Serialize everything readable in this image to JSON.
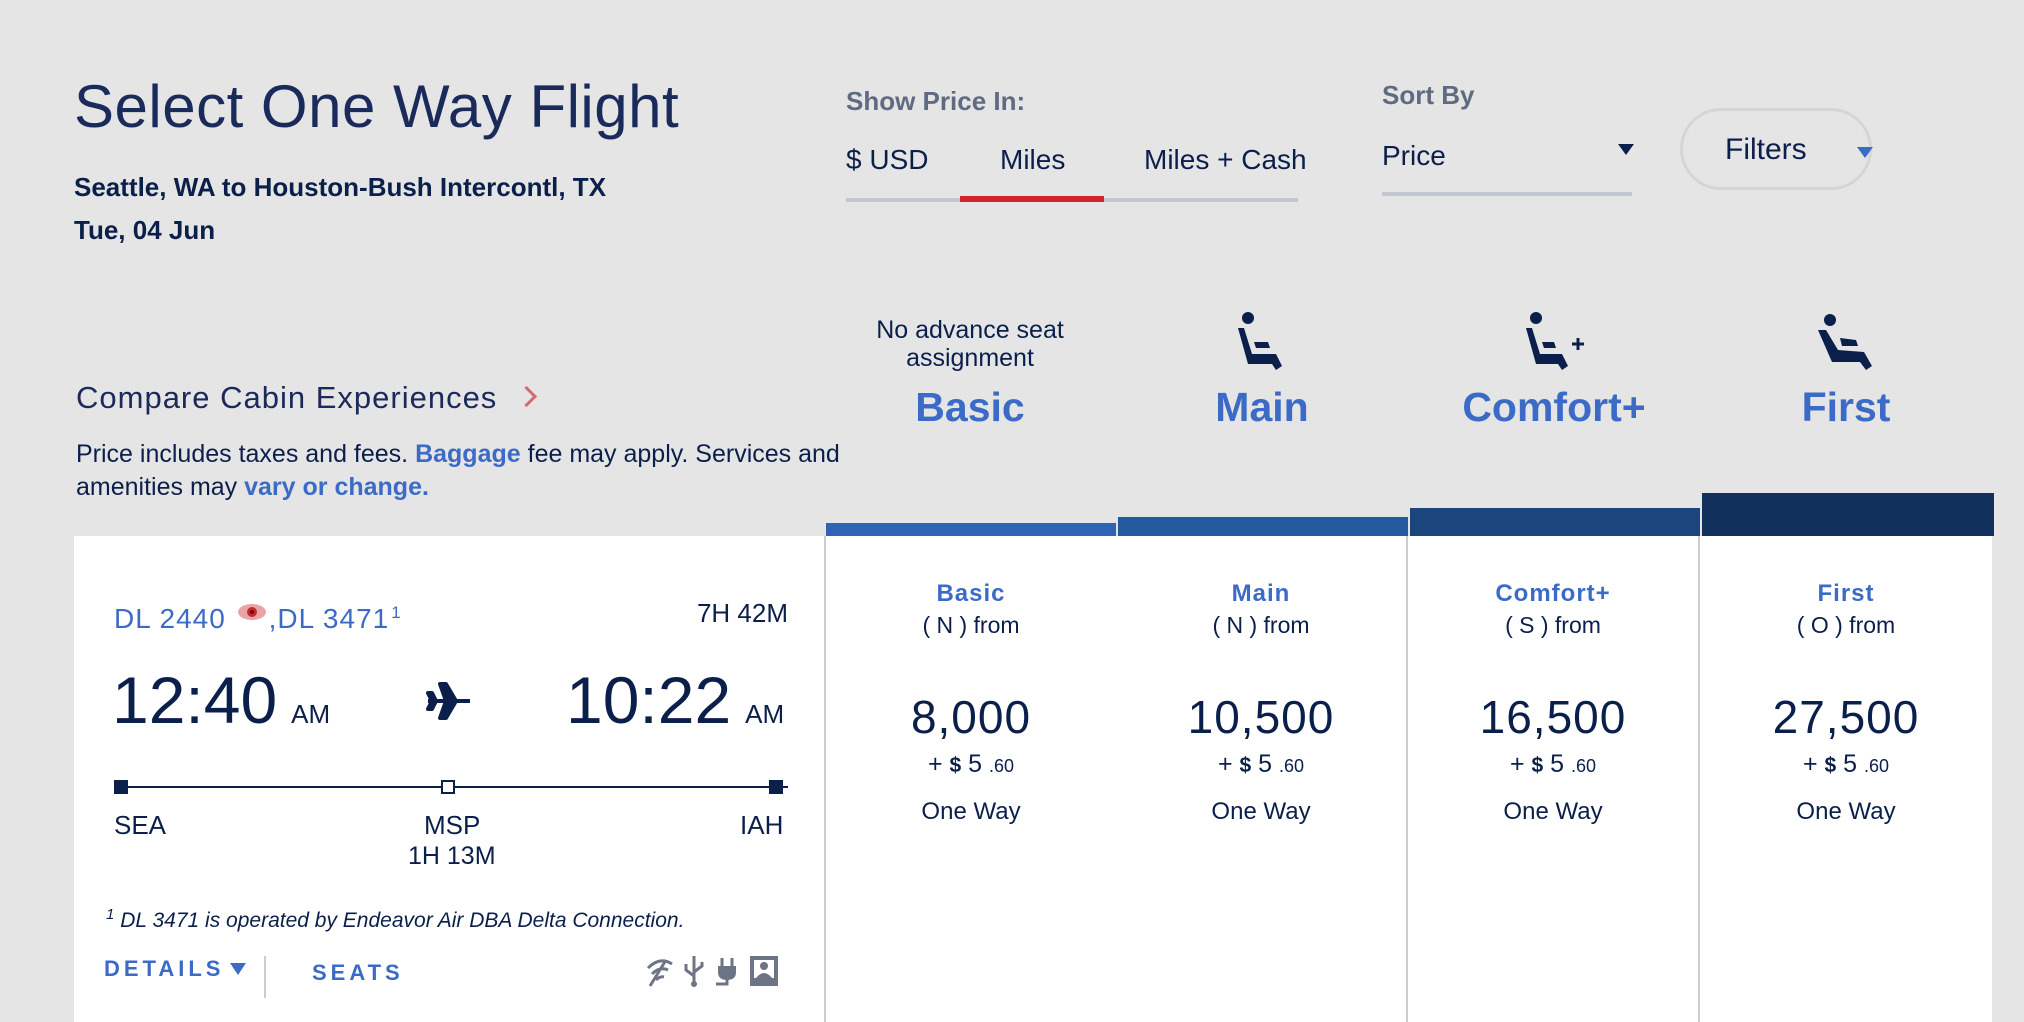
{
  "header": {
    "title": "Select One Way Flight",
    "route": "Seattle, WA to Houston-Bush Intercontl, TX",
    "date": "Tue, 04 Jun"
  },
  "price_display": {
    "label": "Show Price In:",
    "tabs": [
      "$ USD",
      "Miles",
      "Miles + Cash"
    ],
    "selected": "Miles",
    "accent_color": "#d3232f"
  },
  "sort": {
    "label": "Sort By",
    "value": "Price"
  },
  "filters": {
    "label": "Filters"
  },
  "compare": {
    "label": "Compare Cabin Experiences"
  },
  "note": {
    "part1": "Price includes taxes and fees. ",
    "baggage_link": "Baggage",
    "part2": " fee may apply.  Services and amenities may ",
    "vary_link": "vary or change."
  },
  "cabins": [
    {
      "name": "Basic",
      "note": "No advance seat assignment",
      "icon": "none",
      "bar_color": "#2f63b3"
    },
    {
      "name": "Main",
      "note": "",
      "icon": "seat-icon",
      "bar_color": "#24589f"
    },
    {
      "name": "Comfort+",
      "note": "",
      "icon": "seat-plus-icon",
      "bar_color": "#1b457d"
    },
    {
      "name": "First",
      "note": "",
      "icon": "seat-recline-icon",
      "bar_color": "#12305c"
    }
  ],
  "flight": {
    "flight_1": "DL 2440",
    "flight_2": ",DL 3471",
    "footnote_mark": "1",
    "duration": "7H 42M",
    "depart_time": "12:40",
    "depart_ampm": "AM",
    "arrive_time": "10:22",
    "arrive_ampm": "AM",
    "origin": "SEA",
    "stop": "MSP",
    "layover": "1H 13M",
    "destination": "IAH",
    "operated_by": "DL 3471 is operated by Endeavor Air DBA Delta Connection.",
    "details_label": "DETAILS",
    "seats_label": "SEATS",
    "amenities": [
      "wifi-icon",
      "usb-icon",
      "power-icon",
      "entertainment-icon"
    ]
  },
  "fares": [
    {
      "name": "Basic",
      "code": "( N ) from",
      "miles": "8,000",
      "plus": "+",
      "currency": "$",
      "dollars": "5",
      "cents": ".60",
      "trip": "One Way"
    },
    {
      "name": "Main",
      "code": "( N ) from",
      "miles": "10,500",
      "plus": "+",
      "currency": "$",
      "dollars": "5",
      "cents": ".60",
      "trip": "One Way"
    },
    {
      "name": "Comfort+",
      "code": "( S ) from",
      "miles": "16,500",
      "plus": "+",
      "currency": "$",
      "dollars": "5",
      "cents": ".60",
      "trip": "One Way"
    },
    {
      "name": "First",
      "code": "( O ) from",
      "miles": "27,500",
      "plus": "+",
      "currency": "$",
      "dollars": "5",
      "cents": ".60",
      "trip": "One Way"
    }
  ]
}
